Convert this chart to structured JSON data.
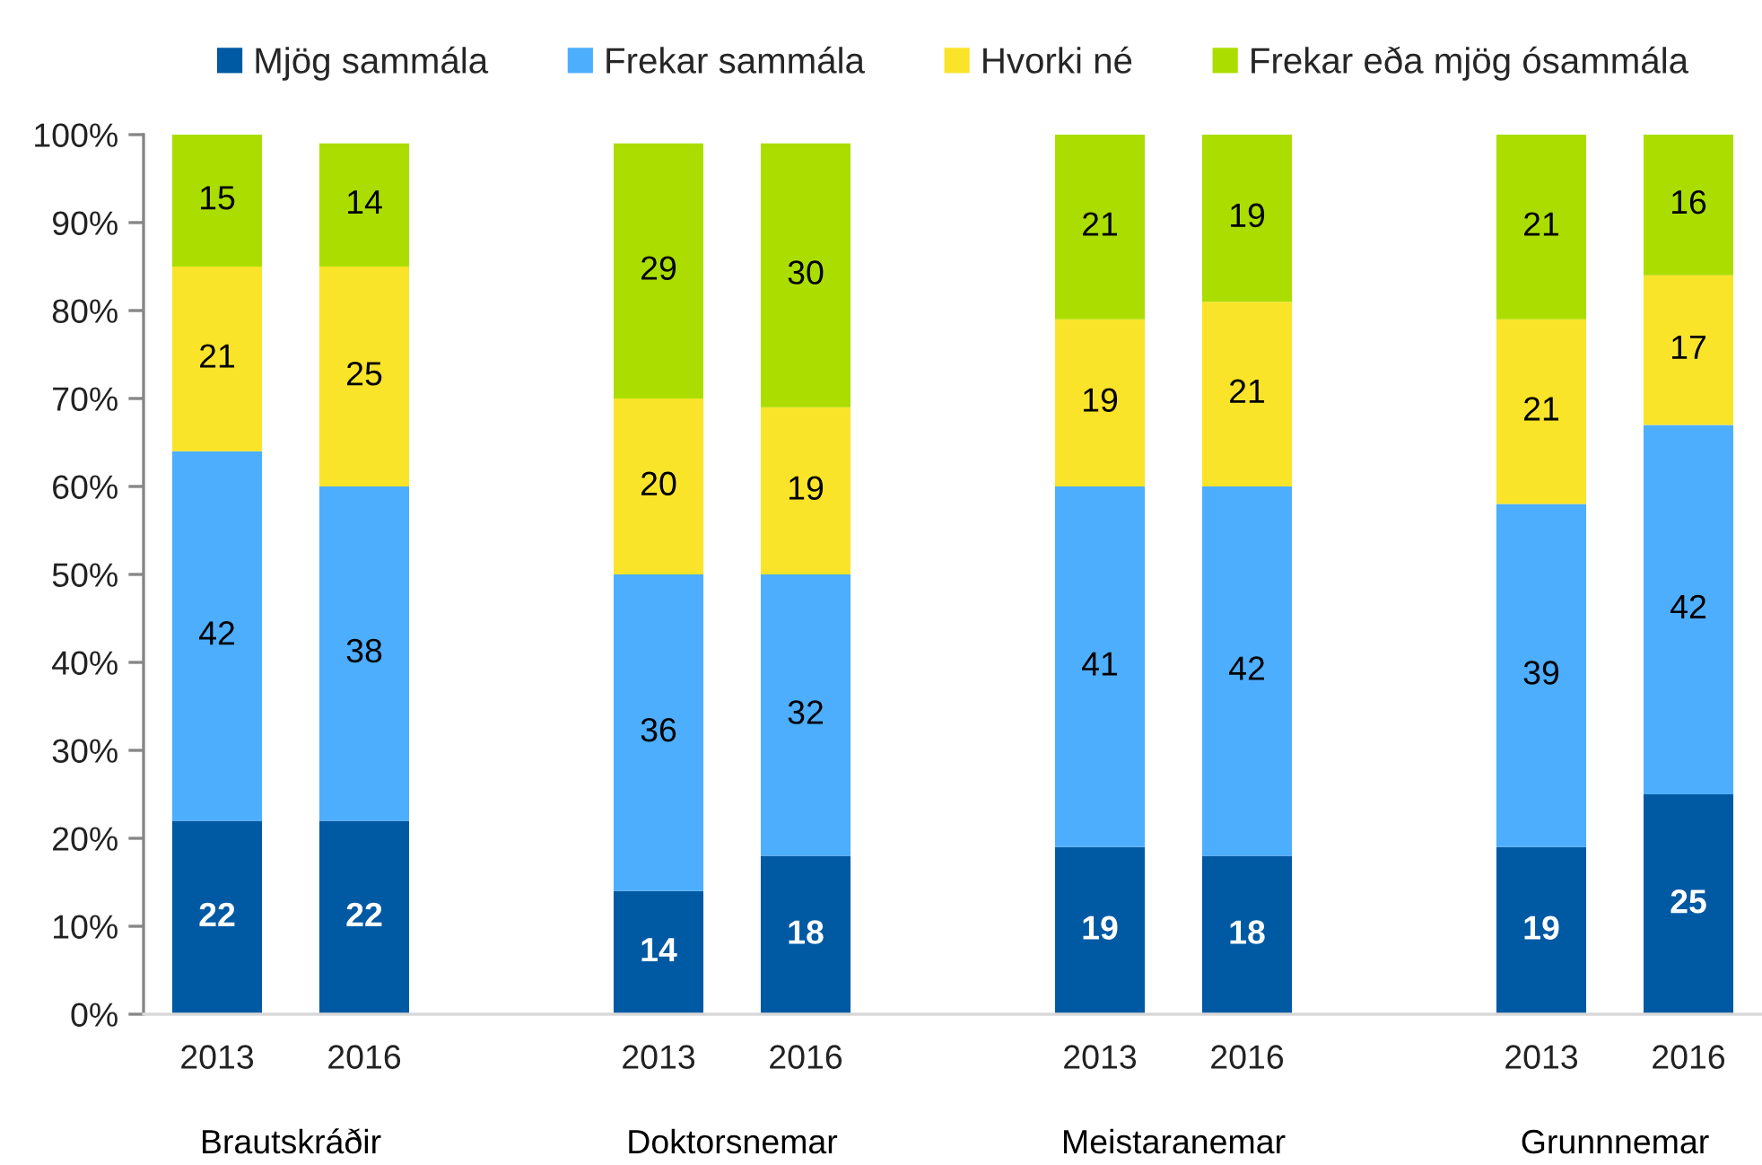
{
  "chart_data": {
    "type": "bar",
    "stacked": true,
    "categories": [
      "2013",
      "2016",
      null,
      "2013",
      "2016",
      null,
      "2013",
      "2016",
      null,
      "2013",
      "2016"
    ],
    "series": [
      {
        "name": "Mjög sammála",
        "color": "#0059a3",
        "values": [
          22,
          22,
          null,
          14,
          18,
          null,
          19,
          18,
          null,
          19,
          25
        ]
      },
      {
        "name": "Frekar sammála",
        "color": "#4daefe",
        "values": [
          42,
          38,
          null,
          36,
          32,
          null,
          41,
          42,
          null,
          39,
          42
        ]
      },
      {
        "name": "Hvorki né",
        "color": "#f9e42a",
        "values": [
          21,
          25,
          null,
          20,
          19,
          null,
          19,
          21,
          null,
          21,
          17
        ]
      },
      {
        "name": "Frekar eða mjög ósammála",
        "color": "#abde00",
        "values": [
          15,
          14,
          null,
          29,
          30,
          null,
          21,
          19,
          null,
          21,
          16
        ]
      }
    ],
    "ylim": [
      0,
      100
    ],
    "yticks": [
      {
        "value": 0,
        "label": "0%"
      },
      {
        "value": 10,
        "label": "10%"
      },
      {
        "value": 20,
        "label": "20%"
      },
      {
        "value": 30,
        "label": "30%"
      },
      {
        "value": 40,
        "label": "40%"
      },
      {
        "value": 50,
        "label": "50%"
      },
      {
        "value": 60,
        "label": "60%"
      },
      {
        "value": 70,
        "label": "70%"
      },
      {
        "value": 80,
        "label": "80%"
      },
      {
        "value": 90,
        "label": "90%"
      },
      {
        "value": 100,
        "label": "100%"
      }
    ],
    "data_labels": true,
    "legend": "top",
    "grid": false,
    "annotations": [
      "Brautskráðir",
      "Doktorsnemar",
      "Meistaranemar",
      "Grunnnemar"
    ]
  }
}
